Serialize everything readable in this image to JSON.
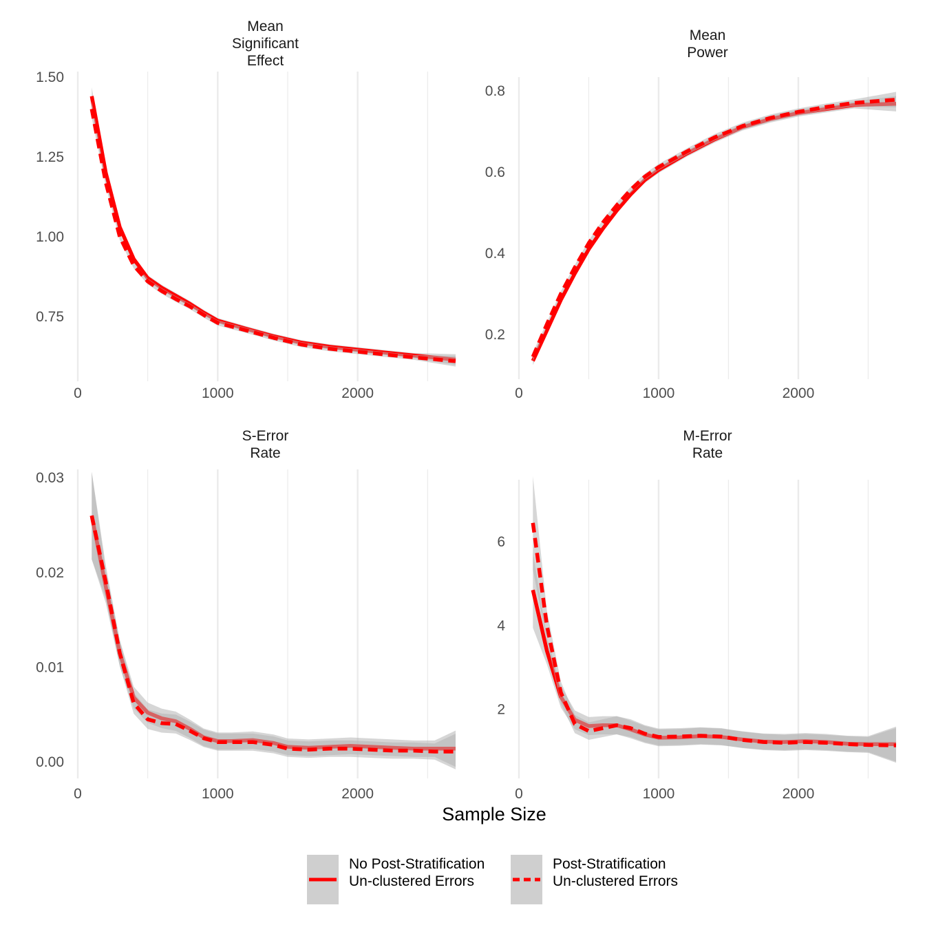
{
  "xlabel": "Sample Size",
  "colors": {
    "line": "#ff0000",
    "band": "#b5b5b5",
    "grid": "#ebebeb"
  },
  "legend": [
    {
      "line1": "No Post-Stratification",
      "line2": "Un-clustered Errors",
      "dash": false
    },
    {
      "line1": "Post-Stratification",
      "line2": "Un-clustered Errors",
      "dash": true
    }
  ],
  "chart_data": [
    {
      "type": "line",
      "strip": [
        "Mean",
        "Significant",
        "Effect"
      ],
      "xlim": [
        0,
        2700
      ],
      "xticks": [
        0,
        1000,
        2000
      ],
      "ylim": [
        0.56,
        1.5
      ],
      "yticks": [
        0.75,
        1.0,
        1.25,
        1.5
      ],
      "ytick_labels": [
        "0.75",
        "1.00",
        "1.25",
        "1.50"
      ],
      "series": [
        {
          "x": [
            100,
            200,
            300,
            400,
            500,
            600,
            700,
            800,
            900,
            1000,
            1200,
            1400,
            1600,
            1800,
            2000,
            2200,
            2400,
            2700
          ],
          "values": [
            1.44,
            1.2,
            1.03,
            0.93,
            0.87,
            0.84,
            0.815,
            0.79,
            0.762,
            0.737,
            0.712,
            0.688,
            0.668,
            0.655,
            0.646,
            0.637,
            0.628,
            0.615
          ]
        },
        {
          "x": [
            100,
            200,
            300,
            400,
            500,
            600,
            700,
            800,
            900,
            1000,
            1200,
            1400,
            1600,
            1800,
            2000,
            2200,
            2400,
            2700
          ],
          "values": [
            1.4,
            1.17,
            1.0,
            0.91,
            0.86,
            0.83,
            0.805,
            0.782,
            0.755,
            0.73,
            0.707,
            0.683,
            0.662,
            0.649,
            0.64,
            0.631,
            0.622,
            0.61
          ]
        }
      ]
    },
    {
      "type": "line",
      "strip": [
        "Mean",
        "Power"
      ],
      "xlim": [
        0,
        2700
      ],
      "xticks": [
        0,
        1000,
        2000
      ],
      "ylim": [
        0.1,
        0.82
      ],
      "yticks": [
        0.2,
        0.4,
        0.6,
        0.8
      ],
      "ytick_labels": [
        "0.2",
        "0.4",
        "0.6",
        "0.8"
      ],
      "series": [
        {
          "x": [
            100,
            200,
            300,
            400,
            500,
            600,
            700,
            800,
            900,
            1000,
            1200,
            1400,
            1600,
            1800,
            2000,
            2200,
            2400,
            2700
          ],
          "values": [
            0.135,
            0.21,
            0.285,
            0.35,
            0.41,
            0.46,
            0.505,
            0.545,
            0.58,
            0.605,
            0.645,
            0.68,
            0.71,
            0.73,
            0.745,
            0.755,
            0.765,
            0.768
          ]
        },
        {
          "x": [
            100,
            200,
            300,
            400,
            500,
            600,
            700,
            800,
            900,
            1000,
            1200,
            1400,
            1600,
            1800,
            2000,
            2200,
            2400,
            2700
          ],
          "values": [
            0.145,
            0.225,
            0.3,
            0.365,
            0.425,
            0.475,
            0.518,
            0.556,
            0.588,
            0.612,
            0.65,
            0.685,
            0.713,
            0.733,
            0.748,
            0.76,
            0.77,
            0.778
          ]
        }
      ]
    },
    {
      "type": "line",
      "strip": [
        "S-Error",
        "Rate"
      ],
      "xlim": [
        0,
        2700
      ],
      "xticks": [
        0,
        1000,
        2000
      ],
      "ylim": [
        -0.0013,
        0.0303
      ],
      "yticks": [
        0.0,
        0.01,
        0.02,
        0.03
      ],
      "ytick_labels": [
        "0.00",
        "0.01",
        "0.02",
        "0.03"
      ],
      "series": [
        {
          "x": [
            100,
            200,
            300,
            400,
            500,
            600,
            700,
            800,
            900,
            1000,
            1100,
            1250,
            1400,
            1500,
            1650,
            1800,
            1950,
            2100,
            2250,
            2400,
            2550,
            2700
          ],
          "values": [
            0.026,
            0.0185,
            0.0115,
            0.0068,
            0.0052,
            0.0046,
            0.0043,
            0.0035,
            0.0026,
            0.0022,
            0.0022,
            0.0023,
            0.002,
            0.0016,
            0.0015,
            0.0016,
            0.0017,
            0.0016,
            0.0015,
            0.0014,
            0.0014,
            0.0014
          ]
        },
        {
          "x": [
            100,
            200,
            300,
            400,
            500,
            600,
            700,
            800,
            900,
            1000,
            1100,
            1250,
            1400,
            1500,
            1650,
            1800,
            1950,
            2100,
            2250,
            2400,
            2550,
            2700
          ],
          "values": [
            0.026,
            0.019,
            0.0115,
            0.0062,
            0.0045,
            0.0041,
            0.004,
            0.0033,
            0.0025,
            0.0021,
            0.0021,
            0.0021,
            0.0018,
            0.0014,
            0.0013,
            0.0014,
            0.0014,
            0.0013,
            0.0012,
            0.0012,
            0.0011,
            0.0011
          ]
        }
      ]
    },
    {
      "type": "line",
      "strip": [
        "M-Error",
        "Rate"
      ],
      "xlim": [
        0,
        2700
      ],
      "xticks": [
        0,
        1000,
        2000
      ],
      "ylim": [
        0.45,
        7.35
      ],
      "yticks": [
        2,
        4,
        6
      ],
      "ytick_labels": [
        "2",
        "4",
        "6"
      ],
      "series": [
        {
          "x": [
            100,
            200,
            300,
            400,
            500,
            600,
            700,
            800,
            900,
            1000,
            1150,
            1300,
            1450,
            1600,
            1750,
            1900,
            2050,
            2200,
            2350,
            2500,
            2700
          ],
          "values": [
            4.85,
            3.4,
            2.3,
            1.75,
            1.6,
            1.62,
            1.62,
            1.52,
            1.4,
            1.32,
            1.33,
            1.36,
            1.34,
            1.28,
            1.23,
            1.22,
            1.24,
            1.22,
            1.18,
            1.17,
            1.17
          ]
        },
        {
          "x": [
            100,
            200,
            300,
            400,
            500,
            600,
            700,
            800,
            900,
            1000,
            1150,
            1300,
            1450,
            1600,
            1750,
            1900,
            2050,
            2200,
            2350,
            2500,
            2700
          ],
          "values": [
            6.45,
            4.0,
            2.4,
            1.65,
            1.48,
            1.55,
            1.62,
            1.55,
            1.42,
            1.34,
            1.35,
            1.37,
            1.35,
            1.27,
            1.22,
            1.2,
            1.22,
            1.2,
            1.17,
            1.15,
            1.14
          ]
        }
      ]
    }
  ]
}
